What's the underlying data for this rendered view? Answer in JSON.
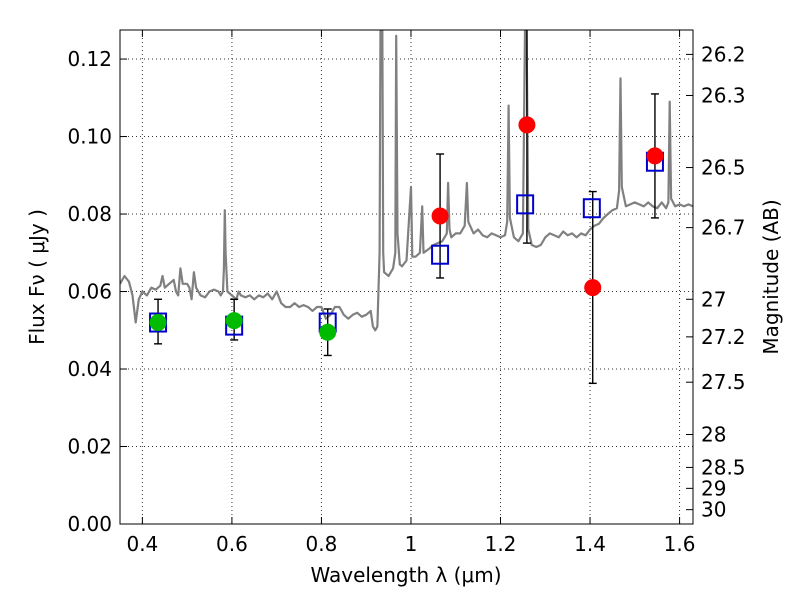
{
  "chart_data": {
    "type": "scatter",
    "xlabel": "Wavelength  λ (μm)",
    "ylabel": "Flux  Fν  ( μJy )",
    "ylabel2": "Magnitude (AB)",
    "xlim": [
      0.35,
      1.63
    ],
    "ylim": [
      0.0,
      0.1275
    ],
    "grid": true,
    "x_ticks": [
      0.4,
      0.6,
      0.8,
      1.0,
      1.2,
      1.4,
      1.6
    ],
    "x_tick_labels": [
      "0.4",
      "0.6",
      "0.8",
      "1",
      "1.2",
      "1.4",
      "1.6"
    ],
    "y_ticks": [
      0.0,
      0.02,
      0.04,
      0.06,
      0.08,
      0.1,
      0.12
    ],
    "y_tick_labels": [
      "0.00",
      "0.02",
      "0.04",
      "0.06",
      "0.08",
      "0.10",
      "0.12"
    ],
    "mag_ticks": [
      {
        "label": "26.2",
        "flux": 0.1212
      },
      {
        "label": "26.3",
        "flux": 0.1106
      },
      {
        "label": "26.5",
        "flux": 0.092
      },
      {
        "label": "26.7",
        "flux": 0.0765
      },
      {
        "label": "27",
        "flux": 0.058
      },
      {
        "label": "27.2",
        "flux": 0.0483
      },
      {
        "label": "27.5",
        "flux": 0.0366
      },
      {
        "label": "28",
        "flux": 0.0231
      },
      {
        "label": "28.5",
        "flux": 0.0146
      },
      {
        "label": "29",
        "flux": 0.0092
      },
      {
        "label": "30",
        "flux": 0.0037
      }
    ],
    "series": [
      {
        "kind": "model-spectrum",
        "color": "#808080",
        "points": [
          [
            0.35,
            0.062
          ],
          [
            0.36,
            0.064
          ],
          [
            0.37,
            0.0625
          ],
          [
            0.378,
            0.059
          ],
          [
            0.385,
            0.052
          ],
          [
            0.392,
            0.058
          ],
          [
            0.4,
            0.06
          ],
          [
            0.41,
            0.059
          ],
          [
            0.42,
            0.061
          ],
          [
            0.43,
            0.0605
          ],
          [
            0.44,
            0.0615
          ],
          [
            0.445,
            0.064
          ],
          [
            0.45,
            0.061
          ],
          [
            0.46,
            0.062
          ],
          [
            0.47,
            0.063
          ],
          [
            0.475,
            0.06
          ],
          [
            0.48,
            0.059
          ],
          [
            0.485,
            0.066
          ],
          [
            0.49,
            0.062
          ],
          [
            0.5,
            0.062
          ],
          [
            0.505,
            0.061
          ],
          [
            0.51,
            0.058
          ],
          [
            0.515,
            0.065
          ],
          [
            0.52,
            0.061
          ],
          [
            0.53,
            0.059
          ],
          [
            0.54,
            0.0585
          ],
          [
            0.55,
            0.06
          ],
          [
            0.56,
            0.0605
          ],
          [
            0.57,
            0.06
          ],
          [
            0.575,
            0.059
          ],
          [
            0.58,
            0.06
          ],
          [
            0.582,
            0.066
          ],
          [
            0.584,
            0.081
          ],
          [
            0.586,
            0.07
          ],
          [
            0.59,
            0.06
          ],
          [
            0.6,
            0.059
          ],
          [
            0.61,
            0.058
          ],
          [
            0.615,
            0.06
          ],
          [
            0.62,
            0.059
          ],
          [
            0.63,
            0.0585
          ],
          [
            0.64,
            0.059
          ],
          [
            0.65,
            0.058
          ],
          [
            0.66,
            0.059
          ],
          [
            0.67,
            0.0585
          ],
          [
            0.68,
            0.0595
          ],
          [
            0.69,
            0.058
          ],
          [
            0.7,
            0.06
          ],
          [
            0.71,
            0.057
          ],
          [
            0.72,
            0.056
          ],
          [
            0.73,
            0.056
          ],
          [
            0.74,
            0.057
          ],
          [
            0.75,
            0.056
          ],
          [
            0.76,
            0.0565
          ],
          [
            0.77,
            0.056
          ],
          [
            0.78,
            0.055
          ],
          [
            0.79,
            0.056
          ],
          [
            0.8,
            0.056
          ],
          [
            0.81,
            0.053
          ],
          [
            0.82,
            0.054
          ],
          [
            0.83,
            0.056
          ],
          [
            0.84,
            0.056
          ],
          [
            0.85,
            0.054
          ],
          [
            0.86,
            0.053
          ],
          [
            0.87,
            0.054
          ],
          [
            0.88,
            0.0545
          ],
          [
            0.89,
            0.0535
          ],
          [
            0.9,
            0.054
          ],
          [
            0.91,
            0.055
          ],
          [
            0.915,
            0.051
          ],
          [
            0.92,
            0.05
          ],
          [
            0.925,
            0.051
          ],
          [
            0.93,
            0.07
          ],
          [
            0.932,
            0.13
          ],
          [
            0.936,
            0.13
          ],
          [
            0.938,
            0.07
          ],
          [
            0.94,
            0.065
          ],
          [
            0.95,
            0.064
          ],
          [
            0.96,
            0.066
          ],
          [
            0.965,
            0.07
          ],
          [
            0.967,
            0.126
          ],
          [
            0.97,
            0.075
          ],
          [
            0.975,
            0.067
          ],
          [
            0.98,
            0.0665
          ],
          [
            0.99,
            0.068
          ],
          [
            1.0,
            0.087
          ],
          [
            1.003,
            0.069
          ],
          [
            1.01,
            0.069
          ],
          [
            1.02,
            0.07
          ],
          [
            1.025,
            0.082
          ],
          [
            1.028,
            0.07
          ],
          [
            1.04,
            0.071
          ],
          [
            1.05,
            0.072
          ],
          [
            1.06,
            0.0725
          ],
          [
            1.07,
            0.073
          ],
          [
            1.08,
            0.075
          ],
          [
            1.083,
            0.088
          ],
          [
            1.086,
            0.076
          ],
          [
            1.09,
            0.074
          ],
          [
            1.1,
            0.075
          ],
          [
            1.11,
            0.075
          ],
          [
            1.12,
            0.077
          ],
          [
            1.125,
            0.088
          ],
          [
            1.128,
            0.078
          ],
          [
            1.14,
            0.075
          ],
          [
            1.15,
            0.076
          ],
          [
            1.16,
            0.0745
          ],
          [
            1.17,
            0.074
          ],
          [
            1.18,
            0.075
          ],
          [
            1.19,
            0.0745
          ],
          [
            1.2,
            0.074
          ],
          [
            1.21,
            0.0745
          ],
          [
            1.215,
            0.078
          ],
          [
            1.218,
            0.108
          ],
          [
            1.221,
            0.079
          ],
          [
            1.23,
            0.074
          ],
          [
            1.24,
            0.073
          ],
          [
            1.25,
            0.075
          ],
          [
            1.255,
            0.13
          ],
          [
            1.258,
            0.13
          ],
          [
            1.262,
            0.076
          ],
          [
            1.27,
            0.072
          ],
          [
            1.28,
            0.0715
          ],
          [
            1.29,
            0.072
          ],
          [
            1.3,
            0.074
          ],
          [
            1.31,
            0.075
          ],
          [
            1.32,
            0.0745
          ],
          [
            1.33,
            0.074
          ],
          [
            1.34,
            0.0755
          ],
          [
            1.35,
            0.0745
          ],
          [
            1.36,
            0.075
          ],
          [
            1.37,
            0.074
          ],
          [
            1.38,
            0.075
          ],
          [
            1.39,
            0.0745
          ],
          [
            1.4,
            0.076
          ],
          [
            1.41,
            0.077
          ],
          [
            1.42,
            0.0775
          ],
          [
            1.43,
            0.079
          ],
          [
            1.44,
            0.08
          ],
          [
            1.45,
            0.081
          ],
          [
            1.46,
            0.0815
          ],
          [
            1.465,
            0.086
          ],
          [
            1.468,
            0.115
          ],
          [
            1.471,
            0.087
          ],
          [
            1.48,
            0.082
          ],
          [
            1.49,
            0.0825
          ],
          [
            1.5,
            0.083
          ],
          [
            1.51,
            0.0825
          ],
          [
            1.52,
            0.082
          ],
          [
            1.53,
            0.083
          ],
          [
            1.54,
            0.082
          ],
          [
            1.55,
            0.0815
          ],
          [
            1.56,
            0.083
          ],
          [
            1.57,
            0.0815
          ],
          [
            1.575,
            0.083
          ],
          [
            1.578,
            0.109
          ],
          [
            1.581,
            0.084
          ],
          [
            1.59,
            0.082
          ],
          [
            1.6,
            0.0825
          ],
          [
            1.61,
            0.082
          ],
          [
            1.62,
            0.0825
          ],
          [
            1.63,
            0.082
          ]
        ]
      },
      {
        "kind": "model-photometry",
        "marker": "open-square",
        "color": "#0000cc",
        "points": [
          [
            0.435,
            0.052
          ],
          [
            0.605,
            0.0512
          ],
          [
            0.814,
            0.052
          ],
          [
            1.065,
            0.0695
          ],
          [
            1.255,
            0.0825
          ],
          [
            1.404,
            0.0815
          ],
          [
            1.545,
            0.0935
          ]
        ]
      },
      {
        "kind": "observed-green",
        "marker": "filled-circle",
        "color": "#00bb00",
        "points": [
          [
            0.435,
            0.052
          ],
          [
            0.605,
            0.0525
          ],
          [
            0.814,
            0.0495
          ]
        ],
        "error_bars": [
          {
            "x": 0.435,
            "low": 0.0465,
            "high": 0.058
          },
          {
            "x": 0.605,
            "low": 0.0475,
            "high": 0.058
          },
          {
            "x": 0.814,
            "low": 0.0435,
            "high": 0.0555
          }
        ]
      },
      {
        "kind": "observed-red",
        "marker": "filled-circle",
        "color": "#ff0000",
        "points": [
          [
            1.065,
            0.0795
          ],
          [
            1.259,
            0.103
          ],
          [
            1.406,
            0.061
          ],
          [
            1.545,
            0.095
          ]
        ],
        "error_bars": [
          {
            "x": 1.065,
            "low": 0.0635,
            "high": 0.0955
          },
          {
            "x": 1.259,
            "low": 0.0725,
            "high": 0.13
          },
          {
            "x": 1.406,
            "low": 0.0363,
            "high": 0.0858
          },
          {
            "x": 1.545,
            "low": 0.079,
            "high": 0.111
          }
        ]
      }
    ]
  }
}
